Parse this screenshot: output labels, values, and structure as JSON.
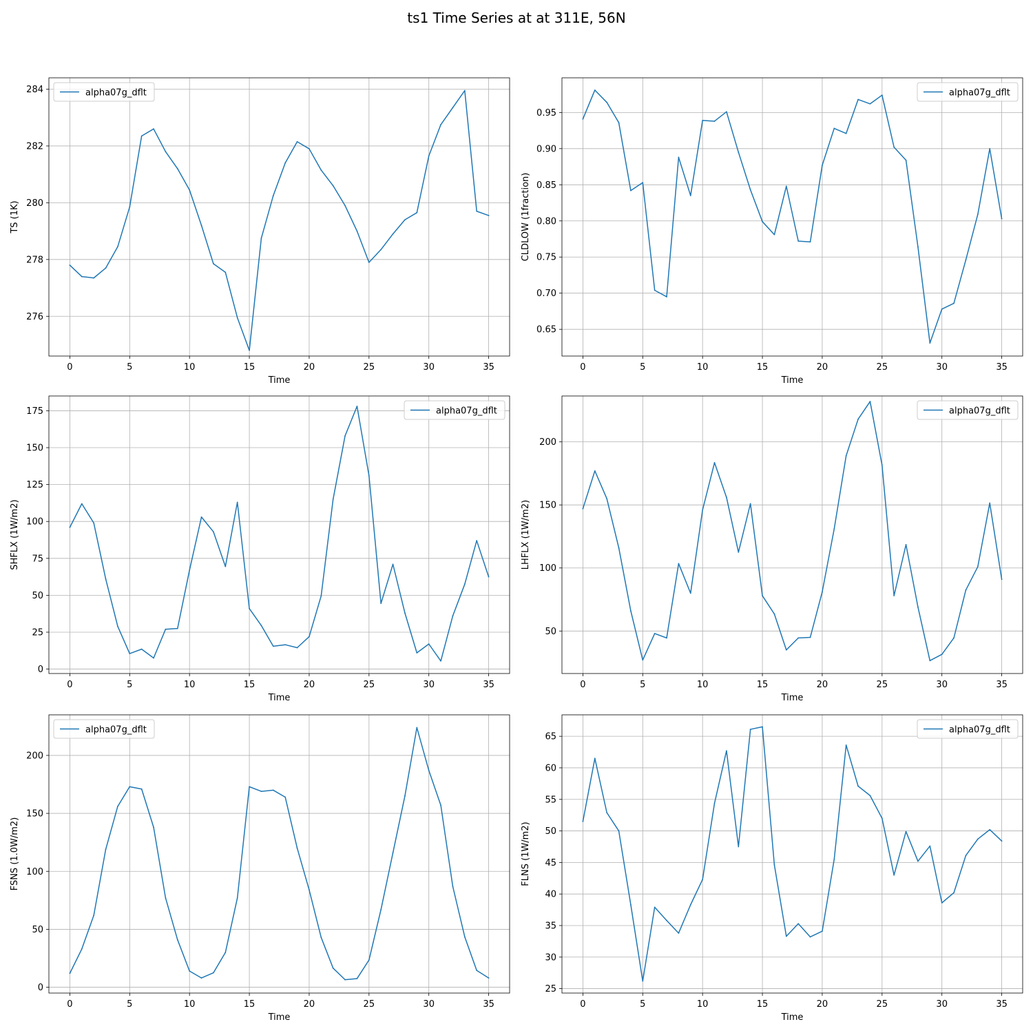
{
  "figure": {
    "title": "ts1 Time Series at at 311E, 56N",
    "line_color": "#1f77b4"
  },
  "chart_data": [
    {
      "type": "line",
      "xlabel": "Time",
      "ylabel": "TS (1K)",
      "legend": "upper left",
      "xlim": [
        -1.75,
        36.75
      ],
      "xticks": [
        0,
        5,
        10,
        15,
        20,
        25,
        30,
        35
      ],
      "ylim": [
        274.6,
        284.4
      ],
      "yticks": [
        276,
        278,
        280,
        282,
        284
      ],
      "ytick_labels": [
        "276",
        "278",
        "280",
        "282",
        "284"
      ],
      "grid": true,
      "series": [
        {
          "name": "alpha07g_dflt",
          "x": [
            0,
            1,
            2,
            3,
            4,
            5,
            6,
            7,
            8,
            9,
            10,
            11,
            12,
            13,
            14,
            15,
            16,
            17,
            18,
            19,
            20,
            21,
            22,
            23,
            24,
            25,
            26,
            27,
            28,
            29,
            30,
            31,
            32,
            33,
            34,
            35
          ],
          "y": [
            277.8,
            277.4,
            277.35,
            277.7,
            278.45,
            279.85,
            282.35,
            282.6,
            281.8,
            281.2,
            280.45,
            279.2,
            277.85,
            277.55,
            275.95,
            274.8,
            278.75,
            280.25,
            281.4,
            282.15,
            281.9,
            281.15,
            280.6,
            279.9,
            279.0,
            277.9,
            278.35,
            278.9,
            279.4,
            279.65,
            281.65,
            282.75,
            283.35,
            283.95,
            279.7,
            279.55
          ]
        }
      ]
    },
    {
      "type": "line",
      "xlabel": "Time",
      "ylabel": "CLDLOW (1fraction)",
      "legend": "upper right",
      "xlim": [
        -1.75,
        36.75
      ],
      "xticks": [
        0,
        5,
        10,
        15,
        20,
        25,
        30,
        35
      ],
      "ylim": [
        0.613,
        0.998
      ],
      "yticks": [
        0.65,
        0.7,
        0.75,
        0.8,
        0.85,
        0.9,
        0.95
      ],
      "ytick_labels": [
        "0.65",
        "0.70",
        "0.75",
        "0.80",
        "0.85",
        "0.90",
        "0.95"
      ],
      "grid": true,
      "series": [
        {
          "name": "alpha07g_dflt",
          "x": [
            0,
            1,
            2,
            3,
            4,
            5,
            6,
            7,
            8,
            9,
            10,
            11,
            12,
            13,
            14,
            15,
            16,
            17,
            18,
            19,
            20,
            21,
            22,
            23,
            24,
            25,
            26,
            27,
            28,
            29,
            30,
            31,
            32,
            33,
            34,
            35
          ],
          "y": [
            0.941,
            0.981,
            0.964,
            0.936,
            0.842,
            0.853,
            0.704,
            0.695,
            0.888,
            0.835,
            0.939,
            0.938,
            0.951,
            0.895,
            0.843,
            0.799,
            0.781,
            0.848,
            0.772,
            0.771,
            0.877,
            0.928,
            0.921,
            0.968,
            0.962,
            0.974,
            0.902,
            0.884,
            0.764,
            0.631,
            0.678,
            0.686,
            0.746,
            0.809,
            0.9,
            0.803
          ]
        }
      ]
    },
    {
      "type": "line",
      "xlabel": "Time",
      "ylabel": "SHFLX (1W/m2)",
      "legend": "upper right",
      "xlim": [
        -1.75,
        36.75
      ],
      "xticks": [
        0,
        5,
        10,
        15,
        20,
        25,
        30,
        35
      ],
      "ylim": [
        -3,
        185
      ],
      "yticks": [
        0,
        25,
        50,
        75,
        100,
        125,
        150,
        175
      ],
      "ytick_labels": [
        "0",
        "25",
        "50",
        "75",
        "100",
        "125",
        "150",
        "175"
      ],
      "grid": true,
      "series": [
        {
          "name": "alpha07g_dflt",
          "x": [
            0,
            1,
            2,
            3,
            4,
            5,
            6,
            7,
            8,
            9,
            10,
            11,
            12,
            13,
            14,
            15,
            16,
            17,
            18,
            19,
            20,
            21,
            22,
            23,
            24,
            25,
            26,
            27,
            28,
            29,
            30,
            31,
            32,
            33,
            34,
            35
          ],
          "y": [
            96,
            112,
            99,
            61,
            29,
            10.5,
            13.5,
            7.5,
            27,
            27.5,
            67,
            103,
            93,
            69.5,
            113,
            41,
            29.5,
            15.5,
            16.5,
            14.5,
            22,
            49.5,
            115,
            158,
            178,
            131,
            44.5,
            71,
            38,
            11,
            17,
            5.5,
            36,
            57.5,
            87,
            62.5
          ]
        }
      ]
    },
    {
      "type": "line",
      "xlabel": "Time",
      "ylabel": "LHFLX (1W/m2)",
      "legend": "upper right",
      "xlim": [
        -1.75,
        36.75
      ],
      "xticks": [
        0,
        5,
        10,
        15,
        20,
        25,
        30,
        35
      ],
      "ylim": [
        16.3,
        236.4
      ],
      "yticks": [
        50,
        100,
        150,
        200
      ],
      "ytick_labels": [
        "50",
        "100",
        "150",
        "200"
      ],
      "grid": true,
      "series": [
        {
          "name": "alpha07g_dflt",
          "x": [
            0,
            1,
            2,
            3,
            4,
            5,
            6,
            7,
            8,
            9,
            10,
            11,
            12,
            13,
            14,
            15,
            16,
            17,
            18,
            19,
            20,
            21,
            22,
            23,
            24,
            25,
            26,
            27,
            28,
            29,
            30,
            31,
            32,
            33,
            34,
            35
          ],
          "y": [
            147,
            177,
            155,
            116,
            66,
            27,
            48,
            44.5,
            103.5,
            80,
            146,
            183.5,
            156,
            112.5,
            151,
            78,
            63.5,
            35,
            44.5,
            45,
            81,
            131,
            189,
            218,
            232,
            181.5,
            78,
            118.5,
            69,
            26.5,
            31.5,
            44.5,
            82.5,
            101,
            151.5,
            91
          ]
        }
      ]
    },
    {
      "type": "line",
      "xlabel": "Time",
      "ylabel": "FSNS (1.0W/m2)",
      "legend": "upper left",
      "xlim": [
        -1.75,
        36.75
      ],
      "xticks": [
        0,
        5,
        10,
        15,
        20,
        25,
        30,
        35
      ],
      "ylim": [
        -5,
        235
      ],
      "yticks": [
        0,
        50,
        100,
        150,
        200
      ],
      "ytick_labels": [
        "0",
        "50",
        "100",
        "150",
        "200"
      ],
      "grid": true,
      "series": [
        {
          "name": "alpha07g_dflt",
          "x": [
            0,
            1,
            2,
            3,
            4,
            5,
            6,
            7,
            8,
            9,
            10,
            11,
            12,
            13,
            14,
            15,
            16,
            17,
            18,
            19,
            20,
            21,
            22,
            23,
            24,
            25,
            26,
            27,
            28,
            29,
            30,
            31,
            32,
            33,
            34,
            35
          ],
          "y": [
            12,
            33,
            62,
            119,
            156,
            173,
            171,
            138,
            77,
            41,
            14,
            8,
            12.5,
            30,
            77,
            173,
            169,
            170,
            164,
            120,
            84,
            43,
            16.5,
            6.5,
            7.5,
            23.5,
            67,
            116,
            165,
            224,
            187,
            157,
            87,
            43.5,
            14.5,
            8
          ]
        }
      ]
    },
    {
      "type": "line",
      "xlabel": "Time",
      "ylabel": "FLNS (1W/m2)",
      "legend": "upper right",
      "xlim": [
        -1.75,
        36.75
      ],
      "xticks": [
        0,
        5,
        10,
        15,
        20,
        25,
        30,
        35
      ],
      "ylim": [
        24.3,
        68.4
      ],
      "yticks": [
        25,
        30,
        35,
        40,
        45,
        50,
        55,
        60,
        65
      ],
      "ytick_labels": [
        "25",
        "30",
        "35",
        "40",
        "45",
        "50",
        "55",
        "60",
        "65"
      ],
      "grid": true,
      "series": [
        {
          "name": "alpha07g_dflt",
          "x": [
            0,
            1,
            2,
            3,
            4,
            5,
            6,
            7,
            8,
            9,
            10,
            11,
            12,
            13,
            14,
            15,
            16,
            17,
            18,
            19,
            20,
            21,
            22,
            23,
            24,
            25,
            26,
            27,
            28,
            29,
            30,
            31,
            32,
            33,
            34,
            35
          ],
          "y": [
            51.5,
            61.5,
            52.9,
            50.0,
            38.3,
            26.2,
            37.9,
            35.8,
            33.8,
            38.3,
            42.3,
            54.4,
            62.7,
            47.5,
            66.1,
            66.5,
            44.6,
            33.3,
            35.3,
            33.2,
            34.1,
            45.5,
            63.6,
            57.1,
            55.6,
            52.0,
            43.0,
            49.9,
            45.2,
            47.6,
            38.6,
            40.2,
            46.1,
            48.7,
            50.2,
            48.4
          ]
        }
      ]
    }
  ]
}
